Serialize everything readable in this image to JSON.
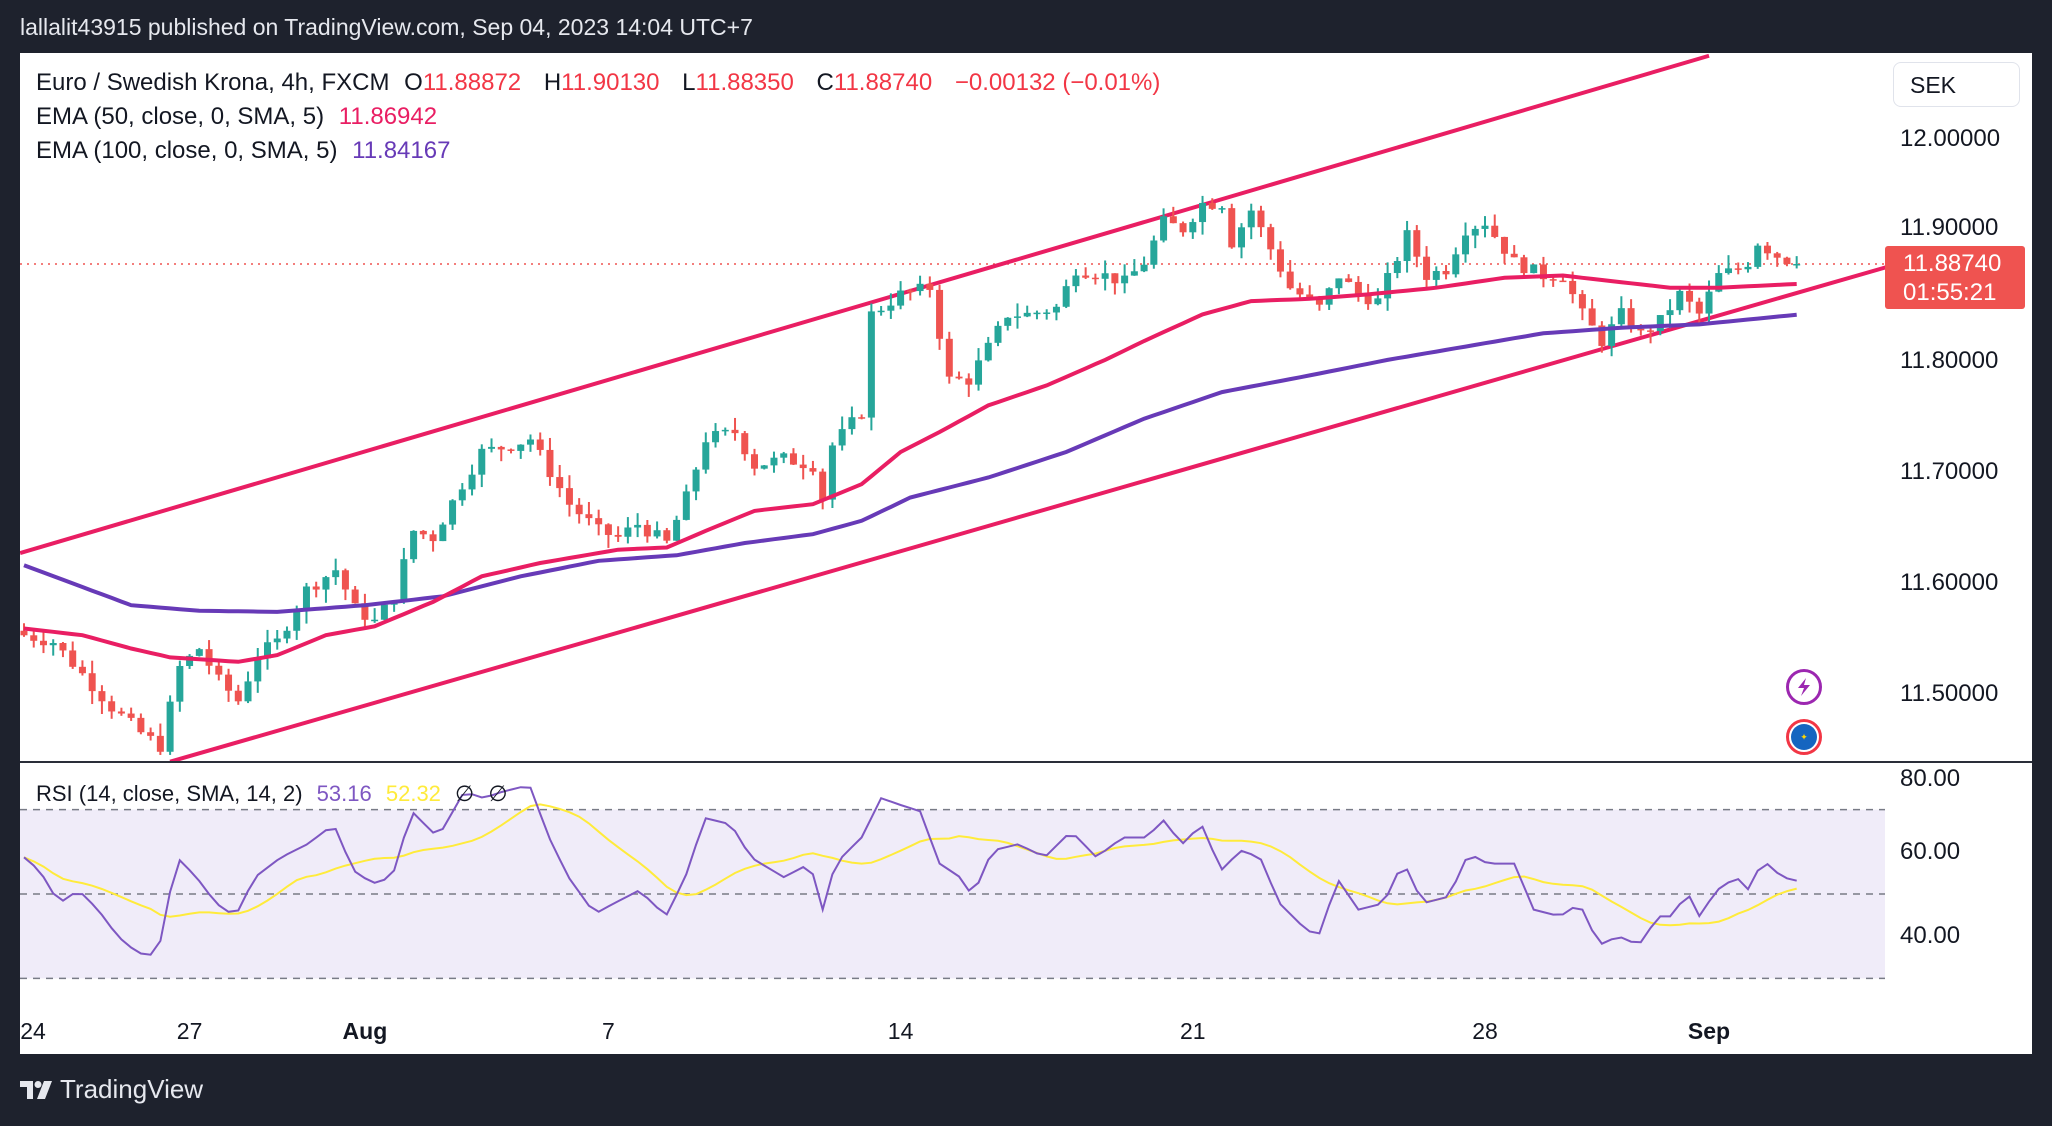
{
  "published_line": "lallalit43915 published on TradingView.com, Sep 04, 2023 14:04 UTC+7",
  "legend": {
    "symbol": "Euro / Swedish Krona, 4h, FXCM",
    "o_label": "O",
    "o": "11.88872",
    "h_label": "H",
    "h": "11.90130",
    "l_label": "L",
    "l": "11.88350",
    "c_label": "C",
    "c": "11.88740",
    "change": "−0.00132 (−0.01%)",
    "ema50_label": "EMA (50, close, 0, SMA, 5)",
    "ema50_value": "11.86942",
    "ema100_label": "EMA (100, close, 0, SMA, 5)",
    "ema100_value": "11.84167"
  },
  "currency_button": "SEK",
  "current_price": {
    "value": "11.88740",
    "countdown": "01:55:21"
  },
  "rsi_legend": {
    "label": "RSI (14, close, SMA, 14, 2)",
    "rsi": "53.16",
    "ma": "52.32",
    "n1": "∅",
    "n2": "∅"
  },
  "footer_brand": "TradingView",
  "colors": {
    "up": "#26a69a",
    "down": "#ef5350",
    "ema50": "#e91e63",
    "ema100": "#673ab7",
    "channel": "#e91e63",
    "rsi": "#7e57c2",
    "rsi_ma": "#ffeb3b"
  },
  "chart_data": {
    "type": "candlestick",
    "title": "Euro / Swedish Krona, 4h, FXCM",
    "price_axis": {
      "ticks": [
        "12.00000",
        "11.90000",
        "11.80000",
        "11.70000",
        "11.60000",
        "11.50000"
      ],
      "values": [
        12.0,
        11.9,
        11.8,
        11.7,
        11.6,
        11.5
      ]
    },
    "time_axis": {
      "labels": [
        "24",
        "27",
        "Aug",
        "7",
        "14",
        "21",
        "28",
        "Sep"
      ],
      "bars": [
        0,
        17,
        35,
        60,
        90,
        120,
        150,
        173
      ]
    },
    "last_price": 11.8874,
    "close_anchors": [
      [
        0,
        11.553
      ],
      [
        3,
        11.547
      ],
      [
        6,
        11.518
      ],
      [
        9,
        11.488
      ],
      [
        12,
        11.465
      ],
      [
        14,
        11.453
      ],
      [
        16,
        11.524
      ],
      [
        18,
        11.541
      ],
      [
        20,
        11.512
      ],
      [
        22,
        11.494
      ],
      [
        24,
        11.535
      ],
      [
        26,
        11.547
      ],
      [
        29,
        11.594
      ],
      [
        32,
        11.612
      ],
      [
        34,
        11.577
      ],
      [
        36,
        11.565
      ],
      [
        38,
        11.588
      ],
      [
        40,
        11.647
      ],
      [
        42,
        11.641
      ],
      [
        45,
        11.689
      ],
      [
        47,
        11.718
      ],
      [
        50,
        11.724
      ],
      [
        52,
        11.73
      ],
      [
        54,
        11.7
      ],
      [
        56,
        11.671
      ],
      [
        59,
        11.647
      ],
      [
        61,
        11.641
      ],
      [
        63,
        11.653
      ],
      [
        66,
        11.636
      ],
      [
        68,
        11.677
      ],
      [
        70,
        11.73
      ],
      [
        73,
        11.736
      ],
      [
        75,
        11.706
      ],
      [
        78,
        11.712
      ],
      [
        81,
        11.706
      ],
      [
        82,
        11.677
      ],
      [
        83,
        11.724
      ],
      [
        86,
        11.754
      ],
      [
        87,
        11.842
      ],
      [
        90,
        11.86
      ],
      [
        93,
        11.866
      ],
      [
        95,
        11.783
      ],
      [
        97,
        11.783
      ],
      [
        99,
        11.812
      ],
      [
        101,
        11.842
      ],
      [
        103,
        11.842
      ],
      [
        106,
        11.848
      ],
      [
        108,
        11.883
      ],
      [
        111,
        11.877
      ],
      [
        113,
        11.871
      ],
      [
        115,
        11.889
      ],
      [
        117,
        11.925
      ],
      [
        119,
        11.919
      ],
      [
        121,
        11.942
      ],
      [
        123,
        11.942
      ],
      [
        124,
        11.907
      ],
      [
        126,
        11.936
      ],
      [
        128,
        11.901
      ],
      [
        130,
        11.866
      ],
      [
        133,
        11.848
      ],
      [
        135,
        11.877
      ],
      [
        137,
        11.86
      ],
      [
        139,
        11.854
      ],
      [
        142,
        11.913
      ],
      [
        144,
        11.877
      ],
      [
        146,
        11.883
      ],
      [
        148,
        11.919
      ],
      [
        150,
        11.925
      ],
      [
        153,
        11.889
      ],
      [
        156,
        11.877
      ],
      [
        158,
        11.877
      ],
      [
        160,
        11.842
      ],
      [
        162,
        11.818
      ],
      [
        164,
        11.842
      ],
      [
        166,
        11.824
      ],
      [
        168,
        11.836
      ],
      [
        170,
        11.86
      ],
      [
        172,
        11.842
      ],
      [
        174,
        11.877
      ],
      [
        176,
        11.883
      ],
      [
        177,
        11.889
      ],
      [
        178,
        11.907
      ],
      [
        180,
        11.895
      ],
      [
        182,
        11.8874
      ]
    ],
    "ema50": [
      [
        0,
        11.559
      ],
      [
        6,
        11.553
      ],
      [
        11,
        11.541
      ],
      [
        15,
        11.533
      ],
      [
        22,
        11.529
      ],
      [
        26,
        11.535
      ],
      [
        31,
        11.553
      ],
      [
        36,
        11.561
      ],
      [
        42,
        11.583
      ],
      [
        47,
        11.606
      ],
      [
        53,
        11.618
      ],
      [
        57,
        11.624
      ],
      [
        61,
        11.63
      ],
      [
        66,
        11.632
      ],
      [
        70,
        11.647
      ],
      [
        75,
        11.665
      ],
      [
        81,
        11.671
      ],
      [
        86,
        11.689
      ],
      [
        90,
        11.718
      ],
      [
        94,
        11.736
      ],
      [
        99,
        11.76
      ],
      [
        105,
        11.778
      ],
      [
        111,
        11.801
      ],
      [
        115,
        11.818
      ],
      [
        121,
        11.842
      ],
      [
        126,
        11.854
      ],
      [
        132,
        11.856
      ],
      [
        138,
        11.86
      ],
      [
        145,
        11.866
      ],
      [
        152,
        11.875
      ],
      [
        158,
        11.877
      ],
      [
        164,
        11.871
      ],
      [
        169,
        11.866
      ],
      [
        174,
        11.866
      ],
      [
        182,
        11.8694
      ]
    ],
    "ema100": [
      [
        0,
        11.616
      ],
      [
        11,
        11.58
      ],
      [
        18,
        11.575
      ],
      [
        26,
        11.574
      ],
      [
        35,
        11.58
      ],
      [
        43,
        11.588
      ],
      [
        51,
        11.606
      ],
      [
        59,
        11.62
      ],
      [
        67,
        11.625
      ],
      [
        74,
        11.636
      ],
      [
        81,
        11.644
      ],
      [
        86,
        11.656
      ],
      [
        91,
        11.677
      ],
      [
        99,
        11.695
      ],
      [
        107,
        11.718
      ],
      [
        115,
        11.748
      ],
      [
        123,
        11.772
      ],
      [
        132,
        11.787
      ],
      [
        140,
        11.801
      ],
      [
        148,
        11.813
      ],
      [
        156,
        11.825
      ],
      [
        164,
        11.83
      ],
      [
        172,
        11.833
      ],
      [
        182,
        11.8417
      ]
    ],
    "channel_upper": [
      [
        -0.4,
        11.627
      ],
      [
        173,
        12.075
      ]
    ],
    "channel_lower": [
      [
        15,
        11.439
      ],
      [
        190.6,
        11.883
      ]
    ],
    "rsi": {
      "axis_ticks": [
        "80.00",
        "60.00",
        "40.00"
      ],
      "tick_values": [
        80,
        60,
        40
      ],
      "bands": [
        70,
        50,
        30
      ],
      "values": [
        [
          0,
          58.7
        ],
        [
          1.6,
          55.6
        ],
        [
          3.6,
          47.8
        ],
        [
          5.6,
          50.9
        ],
        [
          7.6,
          46.3
        ],
        [
          9.6,
          40
        ],
        [
          11.7,
          36
        ],
        [
          13.7,
          35.4
        ],
        [
          15.7,
          58.7
        ],
        [
          17.7,
          54
        ],
        [
          19.7,
          47.8
        ],
        [
          21.7,
          44.7
        ],
        [
          23.7,
          54
        ],
        [
          26.4,
          58.7
        ],
        [
          29.1,
          61.8
        ],
        [
          31.8,
          66.5
        ],
        [
          33.8,
          55.6
        ],
        [
          35.8,
          52.5
        ],
        [
          37.8,
          54
        ],
        [
          39.8,
          69.6
        ],
        [
          42.5,
          63.4
        ],
        [
          45.2,
          74.3
        ],
        [
          47.2,
          72.7
        ],
        [
          49.2,
          74.3
        ],
        [
          51.9,
          75.8
        ],
        [
          53.9,
          63.4
        ],
        [
          55.9,
          54
        ],
        [
          58.6,
          45.3
        ],
        [
          60.6,
          47.8
        ],
        [
          63.2,
          50.9
        ],
        [
          65.9,
          44.7
        ],
        [
          67.9,
          54
        ],
        [
          69.9,
          68
        ],
        [
          72.6,
          66.5
        ],
        [
          74.6,
          58.7
        ],
        [
          78,
          54
        ],
        [
          80.7,
          57.2
        ],
        [
          82,
          46.3
        ],
        [
          83.3,
          57.2
        ],
        [
          86,
          63.4
        ],
        [
          88,
          72.7
        ],
        [
          90,
          71.1
        ],
        [
          92,
          69.6
        ],
        [
          94,
          57.2
        ],
        [
          96.1,
          54
        ],
        [
          97.4,
          49.4
        ],
        [
          99.4,
          60.3
        ],
        [
          102.1,
          61.8
        ],
        [
          104.8,
          58.7
        ],
        [
          107.5,
          64.9
        ],
        [
          110.1,
          58.7
        ],
        [
          112.8,
          63.4
        ],
        [
          115.5,
          63.4
        ],
        [
          116.8,
          68
        ],
        [
          118.9,
          61.8
        ],
        [
          120.9,
          66.5
        ],
        [
          122.9,
          55.6
        ],
        [
          124.9,
          60.3
        ],
        [
          126.9,
          58.7
        ],
        [
          128.9,
          47.8
        ],
        [
          131.6,
          41.6
        ],
        [
          132.9,
          40
        ],
        [
          134.9,
          53.4
        ],
        [
          137,
          46.3
        ],
        [
          139.6,
          47.8
        ],
        [
          141.6,
          57.8
        ],
        [
          143.6,
          47.8
        ],
        [
          146.3,
          49.4
        ],
        [
          148.3,
          59.6
        ],
        [
          150.3,
          57.2
        ],
        [
          153,
          57.2
        ],
        [
          155,
          46.3
        ],
        [
          157.7,
          44.7
        ],
        [
          159.7,
          47.8
        ],
        [
          161.7,
          37.9
        ],
        [
          163.7,
          40
        ],
        [
          165.8,
          37.9
        ],
        [
          167.8,
          44.7
        ],
        [
          169.8,
          44.7
        ],
        [
          170.4,
          53.4
        ],
        [
          171.8,
          44.1
        ],
        [
          173.8,
          50.9
        ],
        [
          175.8,
          54
        ],
        [
          177.1,
          50.9
        ],
        [
          178.5,
          58.1
        ],
        [
          180.5,
          54
        ],
        [
          182,
          53.16
        ]
      ],
      "ma_length": 14
    }
  }
}
